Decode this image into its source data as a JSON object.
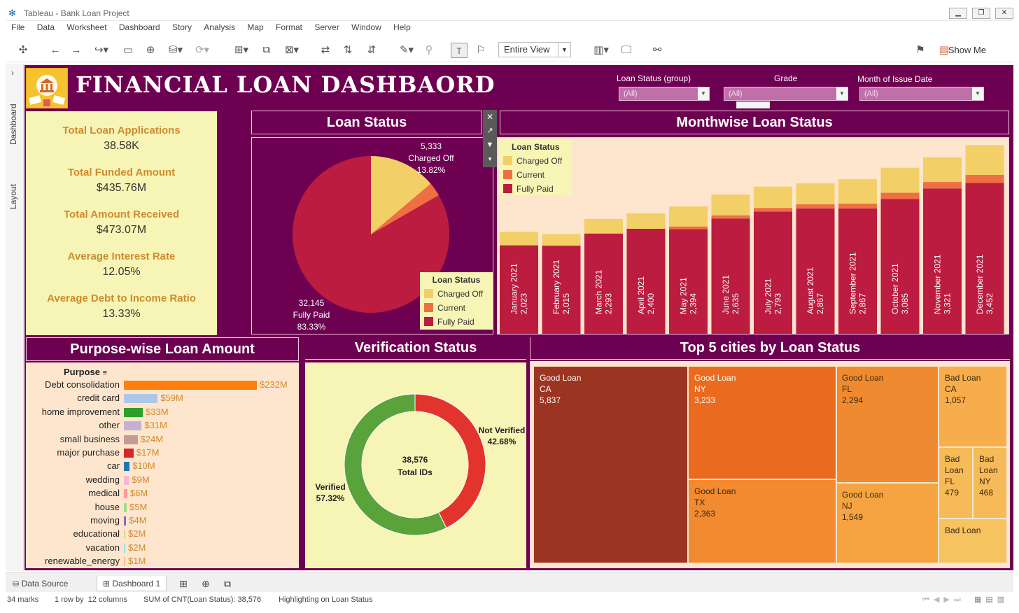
{
  "window": {
    "title": "Tableau - Bank Loan Project"
  },
  "menu": [
    "File",
    "Data",
    "Worksheet",
    "Dashboard",
    "Story",
    "Analysis",
    "Map",
    "Format",
    "Server",
    "Window",
    "Help"
  ],
  "toolbar": {
    "view_select": "Entire View",
    "show_me": "Show Me"
  },
  "side_tabs": {
    "dashboard": "Dashboard",
    "layout": "Layout"
  },
  "dashboard": {
    "title": "FINANCIAL LOAN DASHBAORD",
    "filters": [
      {
        "label": "Loan Status (group)",
        "value": "(All)"
      },
      {
        "label": "Grade",
        "value": "(All)"
      },
      {
        "label": "Month of Issue Date",
        "value": "(All)"
      }
    ],
    "kpis": [
      {
        "label": "Total Loan Applications",
        "value": "38.58K"
      },
      {
        "label": "Total Funded Amount",
        "value": "$435.76M"
      },
      {
        "label": "Total Amount Received",
        "value": "$473.07M"
      },
      {
        "label": "Average Interest Rate",
        "value": "12.05%"
      },
      {
        "label": "Average Debt to Income Ratio",
        "value": "13.33%"
      }
    ],
    "panels": {
      "loan_status": "Loan Status",
      "monthwise": "Monthwise Loan Status",
      "purpose": "Purpose-wise Loan Amount",
      "verification": "Verification Status",
      "top_cities": "Top 5 cities by Loan Status"
    },
    "legend": {
      "title": "Loan Status",
      "items": [
        "Charged Off",
        "Current",
        "Fully Paid"
      ]
    },
    "pie_labels": {
      "charged_off": {
        "count": "5,333",
        "name": "Charged Off",
        "pct": "13.82%"
      },
      "fully_paid": {
        "count": "32,145",
        "name": "Fully Paid",
        "pct": "83.33%"
      }
    },
    "donut": {
      "center_value": "38,576",
      "center_label": "Total IDs",
      "verified": {
        "name": "Verified",
        "pct": "57.32%"
      },
      "not_verified": {
        "name": "Not Verified",
        "pct": "42.68%"
      }
    },
    "purpose_header": "Purpose",
    "treemap": [
      {
        "status": "Good Loan",
        "state": "CA",
        "value": "5,837"
      },
      {
        "status": "Good Loan",
        "state": "NY",
        "value": "3,233"
      },
      {
        "status": "Good Loan",
        "state": "FL",
        "value": "2,294"
      },
      {
        "status": "Bad Loan",
        "state": "CA",
        "value": "1,057"
      },
      {
        "status": "Good Loan",
        "state": "TX",
        "value": "2,363"
      },
      {
        "status": "Good Loan",
        "state": "NJ",
        "value": "1,549"
      },
      {
        "status": "Bad Loan",
        "state": "FL",
        "value": "479"
      },
      {
        "status": "Bad Loan",
        "state": "NY",
        "value": "468"
      },
      {
        "status": "Bad Loan",
        "state": "",
        "value": ""
      }
    ]
  },
  "colors": {
    "charged_off": "#f2cf67",
    "current": "#ee7042",
    "fully_paid": "#bb1c40",
    "verified": "#5aa33b",
    "not_verified": "#e2342d",
    "background": "#6e0051",
    "panel": "#f7f5b5"
  },
  "bottom_tabs": {
    "data_source": "Data Source",
    "dashboard": "Dashboard 1"
  },
  "status": {
    "marks": "34 marks",
    "rows": "1 row by  12 columns",
    "sum": "SUM of CNT(Loan Status): 38,576",
    "highlight": "Highlighting on Loan Status"
  },
  "chart_data": [
    {
      "type": "pie",
      "title": "Loan Status",
      "categories": [
        "Charged Off",
        "Current",
        "Fully Paid"
      ],
      "values": [
        5333,
        1098,
        32145
      ],
      "percent_labels": [
        "13.82%",
        "",
        "83.33%"
      ]
    },
    {
      "type": "bar",
      "title": "Monthwise Loan Status",
      "categories": [
        "January 2021",
        "February 2021",
        "March 2021",
        "April 2021",
        "May 2021",
        "June 2021",
        "July 2021",
        "August 2021",
        "September 2021",
        "October 2021",
        "November 2021",
        "December 2021"
      ],
      "totals": [
        2332,
        2279,
        2627,
        2755,
        2911,
        3184,
        3366,
        3441,
        3536,
        3796,
        4035,
        4314
      ],
      "label_values": [
        "2,023",
        "2,015",
        "2,293",
        "2,400",
        "2,394",
        "2,635",
        "2,793",
        "2,867",
        "2,867",
        "3,085",
        "3,321",
        "3,452"
      ],
      "series": [
        {
          "name": "Fully Paid",
          "values": [
            2023,
            2015,
            2293,
            2400,
            2394,
            2635,
            2793,
            2867,
            2867,
            3085,
            3321,
            3452
          ]
        },
        {
          "name": "Current",
          "values": [
            0,
            0,
            0,
            0,
            60,
            75,
            85,
            95,
            110,
            140,
            150,
            180
          ]
        },
        {
          "name": "Charged Off",
          "values": [
            309,
            264,
            334,
            355,
            457,
            474,
            488,
            479,
            559,
            571,
            564,
            682
          ]
        }
      ]
    },
    {
      "type": "bar",
      "title": "Purpose-wise Loan Amount",
      "categories": [
        "Debt consolidation",
        "credit card",
        "home improvement",
        "other",
        "small business",
        "major purchase",
        "car",
        "wedding",
        "medical",
        "house",
        "moving",
        "educational",
        "vacation",
        "renewable_energy"
      ],
      "values": [
        232,
        59,
        33,
        31,
        24,
        17,
        10,
        9,
        6,
        5,
        4,
        2,
        2,
        1
      ],
      "value_labels": [
        "$232M",
        "$59M",
        "$33M",
        "$31M",
        "$24M",
        "$17M",
        "$10M",
        "$9M",
        "$6M",
        "$5M",
        "$4M",
        "$2M",
        "$2M",
        "$1M"
      ],
      "colors": [
        "#ff7f0e",
        "#aec7e8",
        "#2ca02c",
        "#c5b0d5",
        "#c49c94",
        "#d62728",
        "#1f77b4",
        "#f7b6d2",
        "#ff9896",
        "#98df8a",
        "#9467bd",
        "#dbdb8d",
        "#9edae5",
        "#ffbb78"
      ]
    },
    {
      "type": "pie",
      "title": "Verification Status",
      "categories": [
        "Verified",
        "Not Verified"
      ],
      "values": [
        57.32,
        42.68
      ]
    },
    {
      "type": "heatmap",
      "title": "Top 5 cities by Loan Status",
      "categories": [
        "Good Loan CA",
        "Good Loan NY",
        "Good Loan FL",
        "Bad Loan CA",
        "Good Loan TX",
        "Good Loan NJ",
        "Bad Loan FL",
        "Bad Loan NY"
      ],
      "values": [
        5837,
        3233,
        2294,
        1057,
        2363,
        1549,
        479,
        468
      ]
    }
  ]
}
